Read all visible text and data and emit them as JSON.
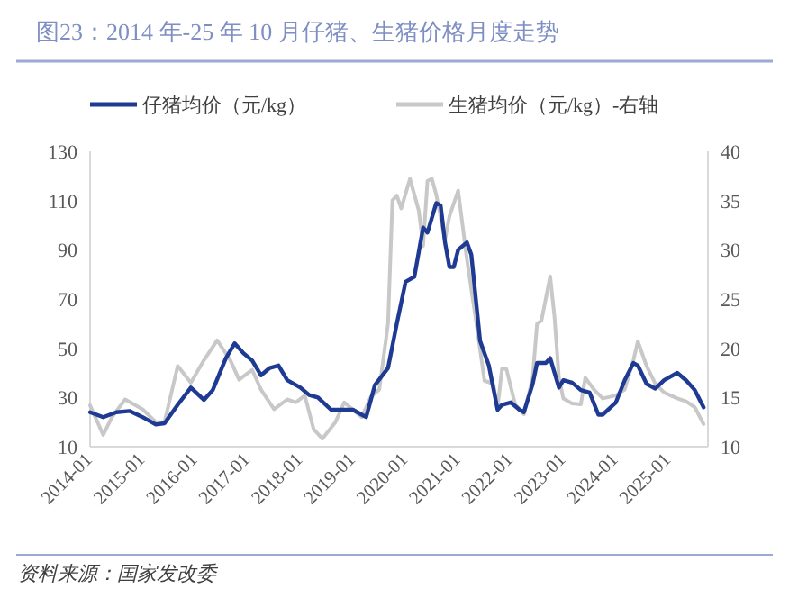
{
  "chart_data": {
    "type": "line",
    "title": "图23：2014 年-25 年 10 月仔猪、生猪价格月度走势",
    "annotations": [
      "资料来源：国家发改委"
    ],
    "xlim": [
      "2014-01",
      "2025-10"
    ],
    "xticks": [
      "2014-01",
      "2015-01",
      "2016-01",
      "2017-01",
      "2018-01",
      "2019-01",
      "2020-01",
      "2021-01",
      "2022-01",
      "2023-01",
      "2024-01",
      "2025-01"
    ],
    "ylim": [
      10,
      130
    ],
    "yticks": [
      10,
      30,
      50,
      70,
      90,
      110,
      130
    ],
    "y2lim": [
      10,
      40
    ],
    "y2ticks": [
      10,
      15,
      20,
      25,
      30,
      35,
      40
    ],
    "legend": "top",
    "grid": false,
    "line_style": "solid",
    "series": [
      {
        "name": "仔猪均价（元/kg）",
        "color": "#1f3a93",
        "x": [
          "2014-01",
          "2014-04",
          "2014-07",
          "2014-10",
          "2015-01",
          "2015-04",
          "2015-06",
          "2015-09",
          "2015-12",
          "2016-03",
          "2016-05",
          "2016-08",
          "2016-10",
          "2016-12",
          "2017-02",
          "2017-04",
          "2017-06",
          "2017-08",
          "2017-10",
          "2018-01",
          "2018-03",
          "2018-05",
          "2018-08",
          "2018-11",
          "2019-01",
          "2019-03",
          "2019-04",
          "2019-06",
          "2019-09",
          "2019-11",
          "2020-01",
          "2020-03",
          "2020-05",
          "2020-06",
          "2020-08",
          "2020-09",
          "2020-10",
          "2020-11",
          "2020-12",
          "2021-01",
          "2021-03",
          "2021-04",
          "2021-06",
          "2021-08",
          "2021-10",
          "2021-11",
          "2022-01",
          "2022-03",
          "2022-04",
          "2022-06",
          "2022-07",
          "2022-09",
          "2022-10",
          "2022-12",
          "2023-01",
          "2023-03",
          "2023-05",
          "2023-07",
          "2023-09",
          "2023-10",
          "2024-01",
          "2024-03",
          "2024-05",
          "2024-06",
          "2024-08",
          "2024-10",
          "2024-12",
          "2025-03",
          "2025-05",
          "2025-07",
          "2025-09"
        ],
        "values": [
          24,
          22,
          24,
          24.5,
          22,
          19,
          19.5,
          27,
          34,
          29,
          33,
          46,
          52,
          48,
          45,
          39,
          42,
          43,
          37,
          34,
          31,
          30,
          25,
          25,
          25,
          23,
          22,
          35,
          42,
          60,
          77,
          79,
          99,
          97,
          109,
          108,
          93,
          83,
          83,
          90,
          93,
          88,
          53,
          43,
          25,
          27,
          28,
          25,
          24,
          35.5,
          44,
          44,
          46,
          34,
          37,
          36,
          33,
          32,
          23,
          23,
          28,
          37,
          44,
          43,
          35.5,
          33.6,
          37,
          40,
          37,
          33,
          26
        ]
      },
      {
        "name": "生猪均价（元/kg）-右轴",
        "color": "#c8c8c8",
        "axis": "y2",
        "x": [
          "2014-01",
          "2014-04",
          "2014-06",
          "2014-09",
          "2015-01",
          "2015-04",
          "2015-06",
          "2015-09",
          "2015-12",
          "2016-03",
          "2016-06",
          "2016-09",
          "2016-11",
          "2017-02",
          "2017-04",
          "2017-07",
          "2017-10",
          "2017-12",
          "2018-02",
          "2018-04",
          "2018-06",
          "2018-09",
          "2018-11",
          "2019-03",
          "2019-05",
          "2019-07",
          "2019-09",
          "2019-10",
          "2019-11",
          "2019-12",
          "2020-02",
          "2020-04",
          "2020-05",
          "2020-06",
          "2020-07",
          "2020-08",
          "2020-10",
          "2020-11",
          "2021-01",
          "2021-03",
          "2021-05",
          "2021-07",
          "2021-09",
          "2021-10",
          "2021-11",
          "2021-12",
          "2022-02",
          "2022-04",
          "2022-06",
          "2022-07",
          "2022-08",
          "2022-10",
          "2022-11",
          "2022-12",
          "2023-01",
          "2023-03",
          "2023-05",
          "2023-06",
          "2023-08",
          "2023-10",
          "2024-01",
          "2024-03",
          "2024-05",
          "2024-06",
          "2024-08",
          "2024-10",
          "2024-12",
          "2025-03",
          "2025-05",
          "2025-07",
          "2025-09"
        ],
        "values": [
          14.2,
          11.2,
          13,
          14.8,
          13.8,
          12.5,
          12.5,
          18.2,
          16.5,
          18.8,
          20.8,
          18.8,
          16.8,
          17.8,
          15.8,
          13.8,
          14.8,
          14.5,
          15.2,
          11.8,
          10.8,
          12.5,
          14.5,
          13,
          15,
          15.8,
          22.5,
          35,
          35.5,
          34.2,
          37.2,
          34,
          30.4,
          37,
          37.2,
          35.6,
          31,
          33.4,
          36,
          29,
          23,
          16.7,
          16.4,
          14,
          17.9,
          17.9,
          14.3,
          13.3,
          17,
          22.5,
          22.8,
          27.3,
          23.1,
          17,
          14.9,
          14.4,
          14.3,
          17,
          15.8,
          14.9,
          15.2,
          15.8,
          18.8,
          20.7,
          18.2,
          16.4,
          15.5,
          14.9,
          14.6,
          14,
          12.3
        ]
      }
    ]
  }
}
